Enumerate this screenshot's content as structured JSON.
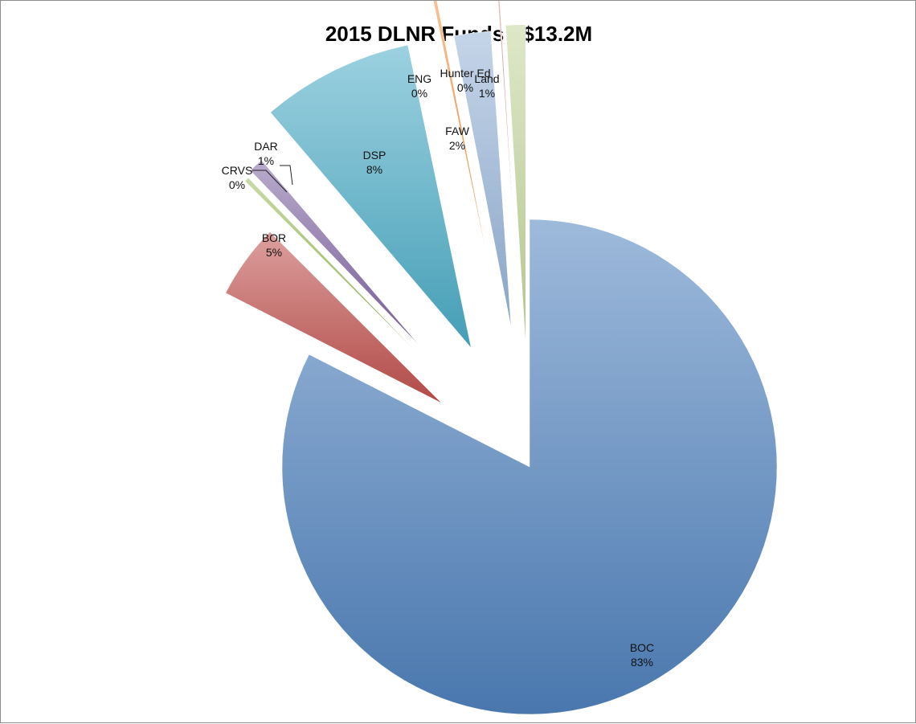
{
  "chart_data": {
    "type": "pie",
    "title": "2015 DLNR Funds - $13.2M",
    "exploded": true,
    "slices": [
      {
        "label": "BOC",
        "value": 83,
        "percent_label": "83%",
        "color": "#4f81bd"
      },
      {
        "label": "BOR",
        "value": 5,
        "percent_label": "5%",
        "color": "#c0504d"
      },
      {
        "label": "CRVS",
        "value": 0.3,
        "percent_label": "0%",
        "color": "#9bbb59"
      },
      {
        "label": "DAR",
        "value": 1,
        "percent_label": "1%",
        "color": "#8064a2"
      },
      {
        "label": "DSP",
        "value": 8,
        "percent_label": "8%",
        "color": "#4bacc6"
      },
      {
        "label": "ENG",
        "value": 0.2,
        "percent_label": "0%",
        "color": "#f79646"
      },
      {
        "label": "FAW",
        "value": 2,
        "percent_label": "2%",
        "color": "#95b3d7"
      },
      {
        "label": "Hunter Ed",
        "value": 0.1,
        "percent_label": "0%",
        "color": "#d99694"
      },
      {
        "label": "Land",
        "value": 1,
        "percent_label": "1%",
        "color": "#c3d69b"
      }
    ]
  }
}
